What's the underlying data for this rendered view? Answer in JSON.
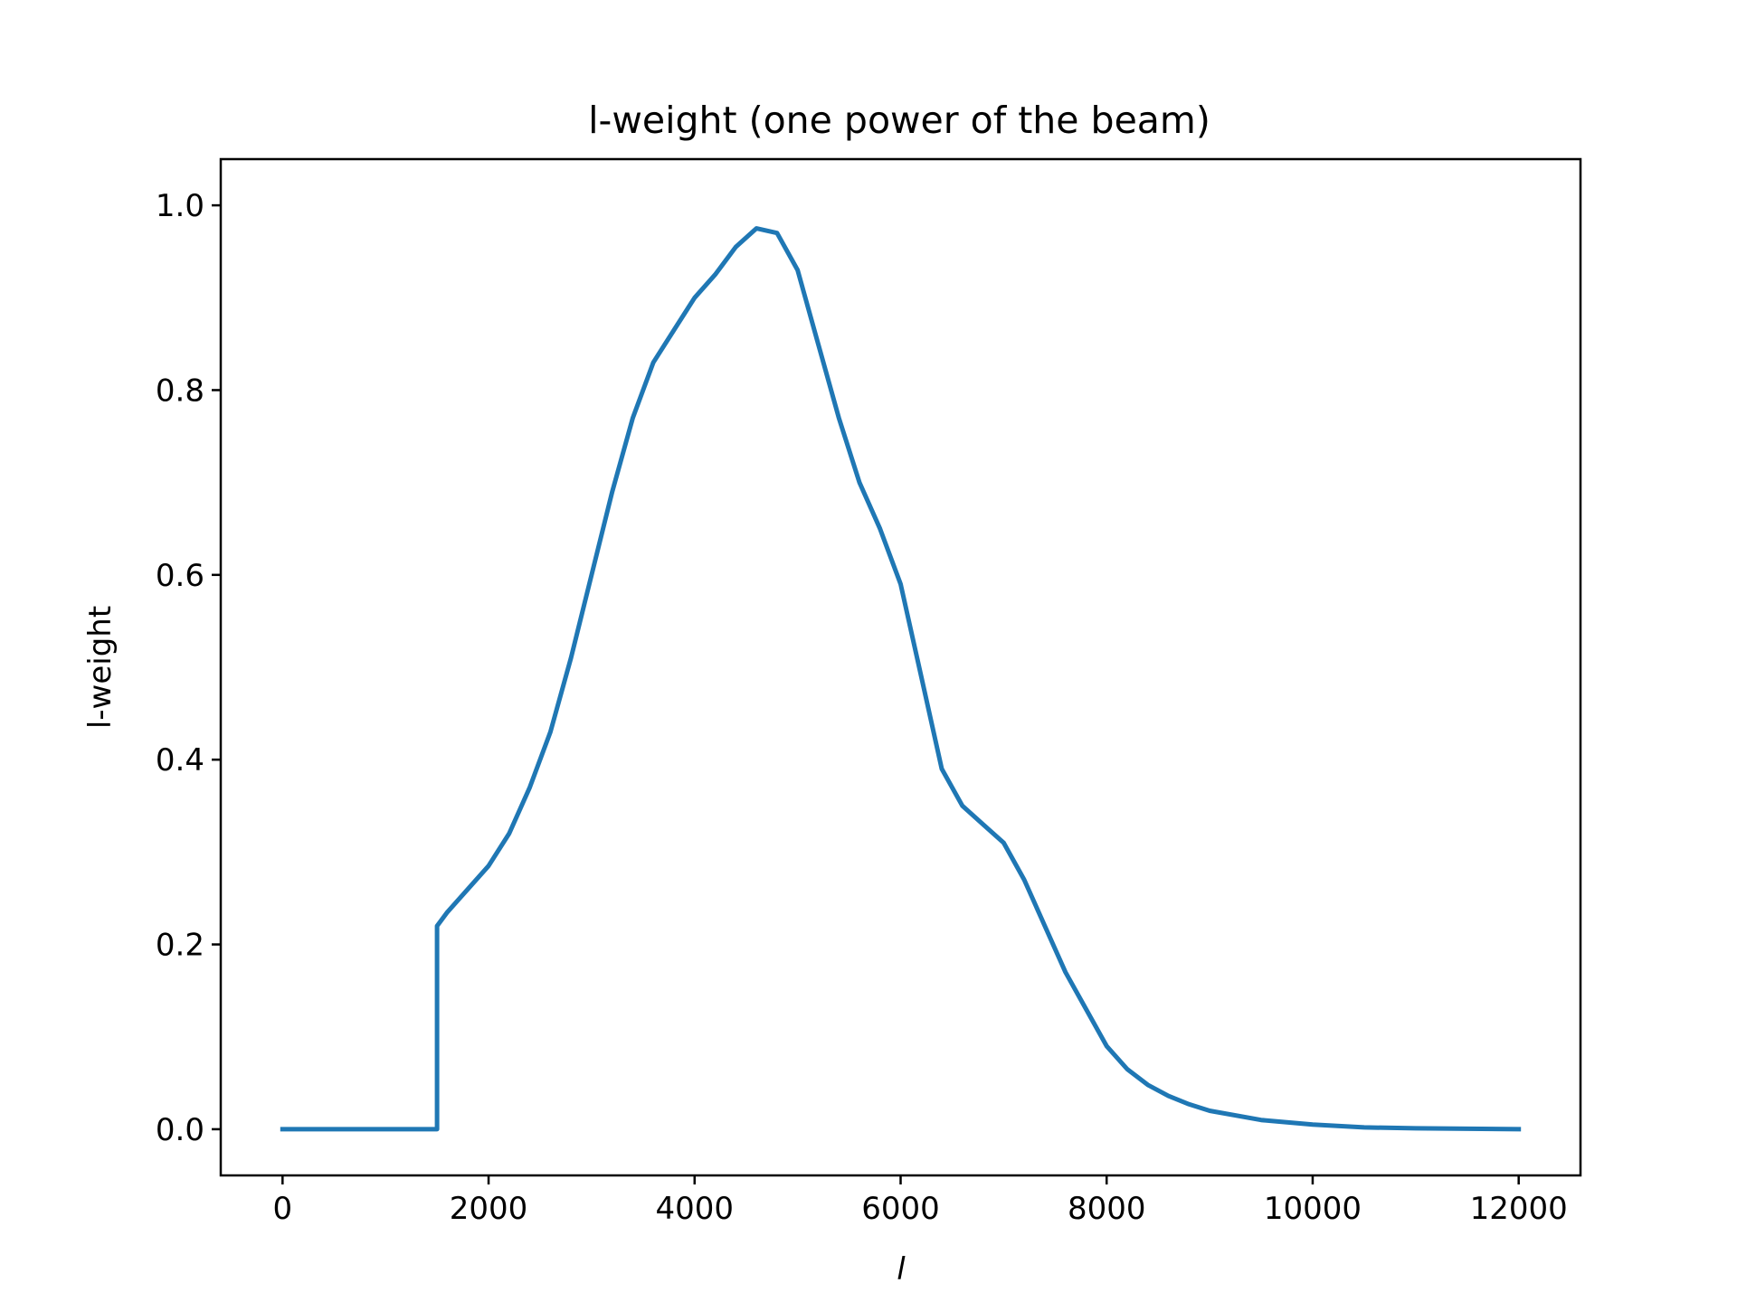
{
  "chart_data": {
    "type": "line",
    "title": "l-weight (one power of the beam)",
    "xlabel": "l",
    "ylabel": "l-weight",
    "xlim": [
      -600,
      12600
    ],
    "ylim": [
      -0.05,
      1.05
    ],
    "xticks": [
      0,
      2000,
      4000,
      6000,
      8000,
      10000,
      12000
    ],
    "xtick_labels": [
      "0",
      "2000",
      "4000",
      "6000",
      "8000",
      "10000",
      "12000"
    ],
    "yticks": [
      0.0,
      0.2,
      0.4,
      0.6,
      0.8,
      1.0
    ],
    "ytick_labels": [
      "0.0",
      "0.2",
      "0.4",
      "0.6",
      "0.8",
      "1.0"
    ],
    "grid": false,
    "legend": "none",
    "line_color": "#1f77b4",
    "series": [
      {
        "x": [
          0,
          1500,
          1500,
          1600,
          1800,
          2000,
          2200,
          2400,
          2600,
          2800,
          3000,
          3200,
          3400,
          3600,
          3800,
          4000,
          4200,
          4400,
          4600,
          4800,
          5000,
          5200,
          5400,
          5600,
          5800,
          6000,
          6200,
          6400,
          6600,
          6800,
          7000,
          7200,
          7400,
          7600,
          7800,
          8000,
          8200,
          8400,
          8600,
          8800,
          9000,
          9500,
          10000,
          10500,
          11000,
          12000
        ],
        "y": [
          0.0,
          0.0,
          0.22,
          0.235,
          0.26,
          0.285,
          0.32,
          0.37,
          0.43,
          0.51,
          0.6,
          0.69,
          0.77,
          0.83,
          0.865,
          0.9,
          0.925,
          0.955,
          0.975,
          0.97,
          0.93,
          0.85,
          0.77,
          0.7,
          0.65,
          0.59,
          0.49,
          0.39,
          0.35,
          0.33,
          0.31,
          0.27,
          0.22,
          0.17,
          0.13,
          0.09,
          0.065,
          0.048,
          0.036,
          0.027,
          0.02,
          0.01,
          0.005,
          0.002,
          0.001,
          0.0
        ]
      }
    ]
  }
}
